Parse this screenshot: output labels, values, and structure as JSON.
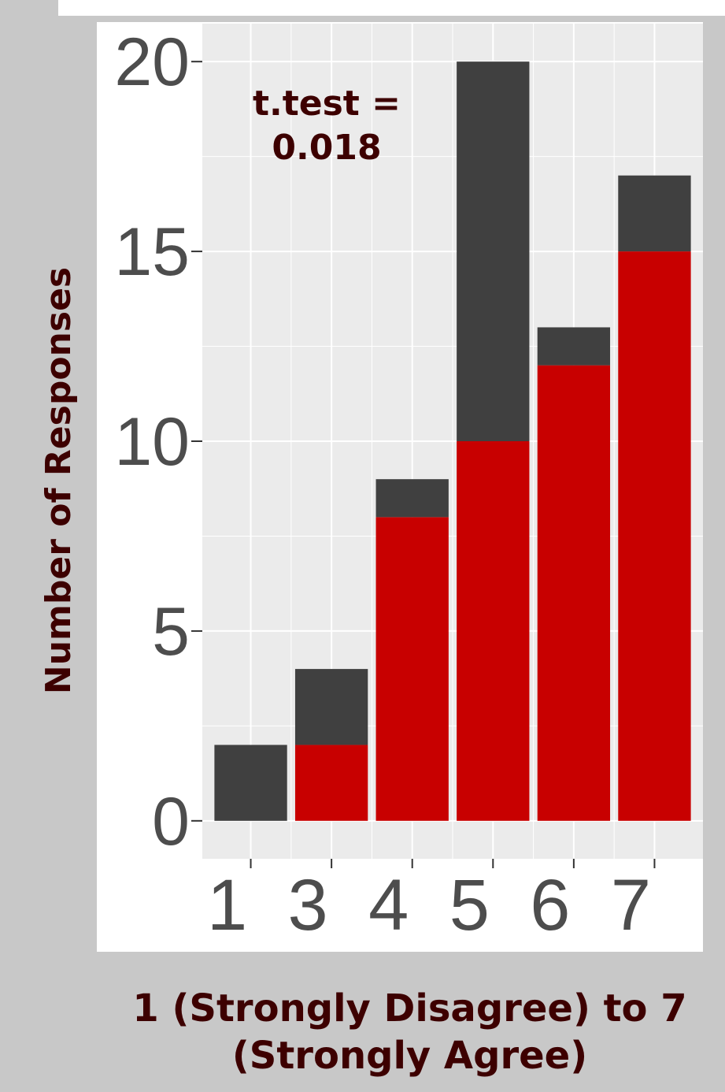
{
  "chart_data": {
    "type": "bar",
    "stacked": true,
    "categories": [
      "1",
      "3",
      "4",
      "5",
      "6",
      "7"
    ],
    "series": [
      {
        "values": [
          0,
          2,
          8,
          10,
          12,
          15
        ],
        "color": "#c80000"
      },
      {
        "values": [
          2,
          2,
          1,
          10,
          1,
          2
        ],
        "color": "#404040"
      }
    ],
    "totals": [
      2,
      4,
      9,
      20,
      13,
      17
    ],
    "xlabel": "1 (Strongly Disagree) to 7 (Strongly Agree)",
    "ylabel": "Number of Responses",
    "ylim": [
      -1,
      21
    ],
    "yticks": [
      0,
      5,
      10,
      15,
      20
    ],
    "annotation": {
      "line1": "t.test =",
      "line2": "0.018"
    },
    "panel_background": "#ebebeb",
    "grid": true
  }
}
